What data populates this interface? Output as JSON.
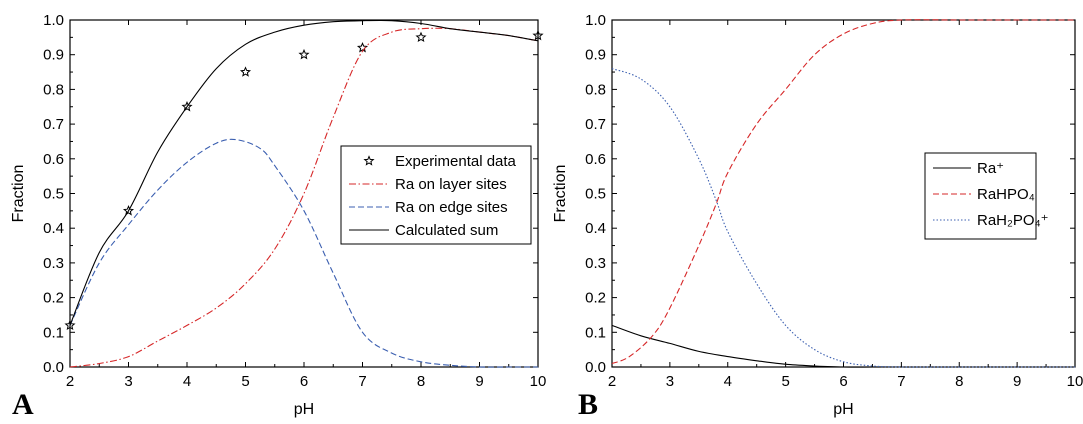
{
  "chart_data": [
    {
      "type": "line",
      "panel_label": "A",
      "xlabel": "pH",
      "ylabel": "Fraction",
      "xlim": [
        2,
        10
      ],
      "ylim": [
        0,
        1.0
      ],
      "xticks": [
        "2",
        "3",
        "4",
        "5",
        "6",
        "7",
        "8",
        "9",
        "10"
      ],
      "yticks": [
        "0.0",
        "0.1",
        "0.2",
        "0.3",
        "0.4",
        "0.5",
        "0.6",
        "0.7",
        "0.8",
        "0.9",
        "1.0"
      ],
      "legend_position": "center-right",
      "grid": false,
      "series": [
        {
          "name": "Experimental data",
          "style": "markers",
          "marker": "star",
          "color": "#000000",
          "x": [
            2,
            3,
            4,
            5,
            6,
            7,
            8,
            10
          ],
          "y": [
            0.12,
            0.45,
            0.75,
            0.85,
            0.9,
            0.92,
            0.95,
            0.955
          ]
        },
        {
          "name": "Ra on layer sites",
          "style": "dash-dot",
          "color": "#d62728",
          "x": [
            2,
            2.5,
            3,
            3.5,
            4,
            4.5,
            5,
            5.5,
            6,
            6.5,
            7,
            7.5,
            8,
            8.5,
            9,
            9.5,
            10
          ],
          "y": [
            0.0,
            0.01,
            0.03,
            0.075,
            0.12,
            0.17,
            0.24,
            0.34,
            0.5,
            0.72,
            0.91,
            0.965,
            0.975,
            0.975,
            0.965,
            0.955,
            0.94
          ]
        },
        {
          "name": "Ra on edge sites",
          "style": "dashed",
          "color": "#3b5fb0",
          "x": [
            2,
            2.5,
            3,
            3.5,
            4,
            4.5,
            4.85,
            5.25,
            5.5,
            6,
            6.5,
            7,
            7.5,
            8,
            8.5,
            9,
            9.5,
            10
          ],
          "y": [
            0.12,
            0.3,
            0.41,
            0.51,
            0.59,
            0.645,
            0.655,
            0.63,
            0.58,
            0.45,
            0.27,
            0.1,
            0.04,
            0.015,
            0.005,
            0.0,
            0.0,
            0.0
          ]
        },
        {
          "name": "Calculated sum",
          "style": "solid",
          "color": "#000000",
          "x": [
            2,
            2.5,
            3,
            3.5,
            4,
            4.5,
            5,
            5.5,
            6,
            6.5,
            7,
            7.5,
            8,
            8.5,
            9,
            9.5,
            10
          ],
          "y": [
            0.12,
            0.33,
            0.45,
            0.62,
            0.75,
            0.86,
            0.93,
            0.965,
            0.985,
            0.995,
            0.998,
            0.998,
            0.99,
            0.975,
            0.965,
            0.955,
            0.94
          ]
        }
      ]
    },
    {
      "type": "line",
      "panel_label": "B",
      "xlabel": "pH",
      "ylabel": "Fraction",
      "xlim": [
        2,
        10
      ],
      "ylim": [
        0,
        1.0
      ],
      "xticks": [
        "2",
        "3",
        "4",
        "5",
        "6",
        "7",
        "8",
        "9",
        "10"
      ],
      "yticks": [
        "0.0",
        "0.1",
        "0.2",
        "0.3",
        "0.4",
        "0.5",
        "0.6",
        "0.7",
        "0.8",
        "0.9",
        "1.0"
      ],
      "legend_position": "center-right",
      "grid": false,
      "series": [
        {
          "name": "Ra⁺",
          "style": "solid",
          "color": "#000000",
          "x": [
            2,
            2.5,
            3,
            3.5,
            4,
            4.5,
            5,
            5.5,
            6,
            6.5,
            7,
            8,
            9,
            10
          ],
          "y": [
            0.12,
            0.09,
            0.068,
            0.045,
            0.03,
            0.018,
            0.008,
            0.003,
            0.0,
            0.0,
            0.0,
            0.0,
            0.0,
            0.0
          ]
        },
        {
          "name": "RaHPO₄",
          "style": "dashed",
          "color": "#d62728",
          "x": [
            2,
            2.3,
            2.7,
            3,
            3.5,
            3.8,
            4,
            4.5,
            5,
            5.5,
            6,
            6.5,
            7,
            8,
            9,
            10
          ],
          "y": [
            0.01,
            0.03,
            0.09,
            0.17,
            0.35,
            0.47,
            0.56,
            0.7,
            0.8,
            0.9,
            0.96,
            0.99,
            1.0,
            1.0,
            1.0,
            1.0
          ]
        },
        {
          "name": "RaH₂PO₄⁺",
          "style": "dotted",
          "color": "#3b5fb0",
          "x": [
            2,
            2.5,
            3,
            3.5,
            3.8,
            4,
            4.5,
            5,
            5.5,
            6,
            6.5,
            7,
            8,
            9,
            10
          ],
          "y": [
            0.86,
            0.83,
            0.75,
            0.6,
            0.48,
            0.39,
            0.24,
            0.12,
            0.05,
            0.015,
            0.003,
            0.0,
            0.0,
            0.0,
            0.0
          ]
        }
      ]
    }
  ]
}
